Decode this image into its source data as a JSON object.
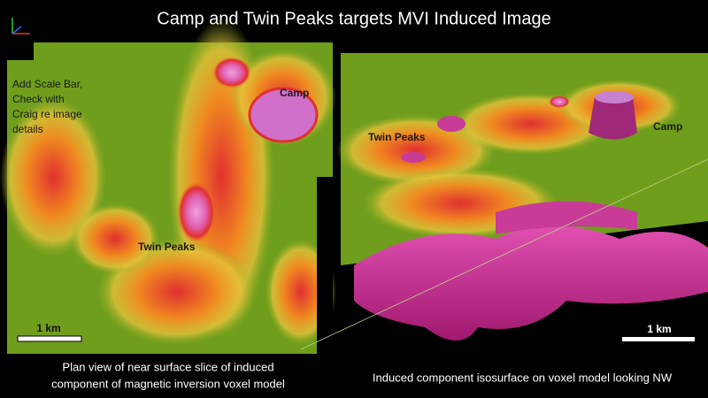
{
  "slide": {
    "title": "Camp and Twin Peaks targets MVI Induced Image",
    "left_panel": {
      "labels": {
        "camp": "Camp",
        "twin_peaks": "Twin Peaks"
      },
      "note": [
        "Add Scale Bar,",
        "Check with",
        "Craig re image",
        "details"
      ],
      "scale_bar": "1 km",
      "caption": [
        "Plan view of near surface slice of induced",
        "component of magnetic inversion voxel model"
      ]
    },
    "right_panel": {
      "labels": {
        "camp": "Camp",
        "twin_peaks": "Twin Peaks"
      },
      "scale_bar": "1 km",
      "caption": "Induced component isosurface on voxel model looking  NW"
    }
  }
}
